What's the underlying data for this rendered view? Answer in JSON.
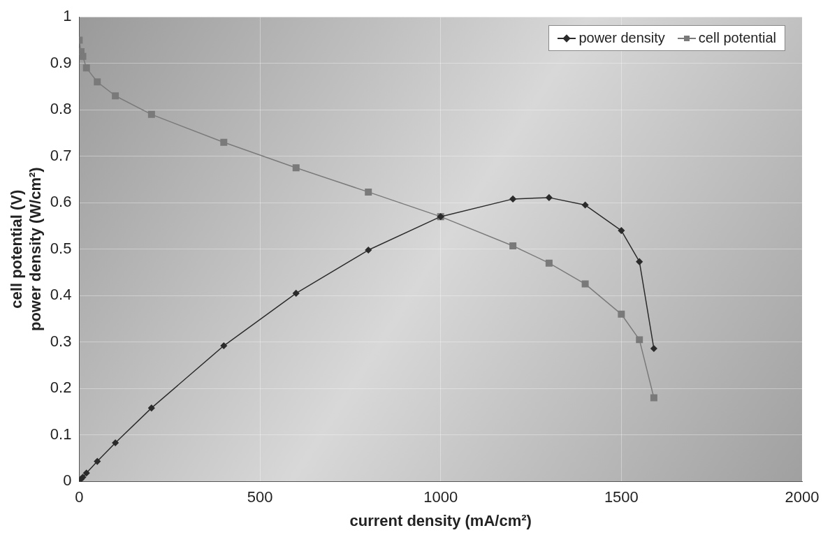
{
  "chart_data": {
    "type": "line",
    "xlabel": "current density (mA/cm²)",
    "ylabel": "cell potential (V)\npower density (W/cm²)",
    "xlim": [
      0,
      2000
    ],
    "xticks": [
      0,
      500,
      1000,
      1500,
      2000
    ],
    "ylim": [
      0,
      1
    ],
    "yticks": [
      0,
      0.1,
      0.2,
      0.3,
      0.4,
      0.5,
      0.6,
      0.7,
      0.8,
      0.9,
      1
    ],
    "grid": true,
    "legend": "top right",
    "series": [
      {
        "name": "power density",
        "color": "#2b2b2b",
        "marker": "diamond",
        "x": [
          0,
          5,
          10,
          20,
          50,
          100,
          200,
          400,
          600,
          800,
          1000,
          1200,
          1300,
          1400,
          1500,
          1550,
          1590
        ],
        "values": [
          0,
          0.005,
          0.009,
          0.018,
          0.043,
          0.083,
          0.158,
          0.292,
          0.405,
          0.498,
          0.57,
          0.608,
          0.611,
          0.595,
          0.54,
          0.473,
          0.286
        ]
      },
      {
        "name": "cell potential",
        "color": "#7a7a7a",
        "marker": "square",
        "x": [
          0,
          5,
          10,
          20,
          50,
          100,
          200,
          400,
          600,
          800,
          1000,
          1200,
          1300,
          1400,
          1500,
          1550,
          1590
        ],
        "values": [
          0.95,
          0.925,
          0.915,
          0.89,
          0.86,
          0.83,
          0.79,
          0.73,
          0.675,
          0.623,
          0.57,
          0.507,
          0.47,
          0.425,
          0.36,
          0.305,
          0.18
        ]
      }
    ]
  }
}
